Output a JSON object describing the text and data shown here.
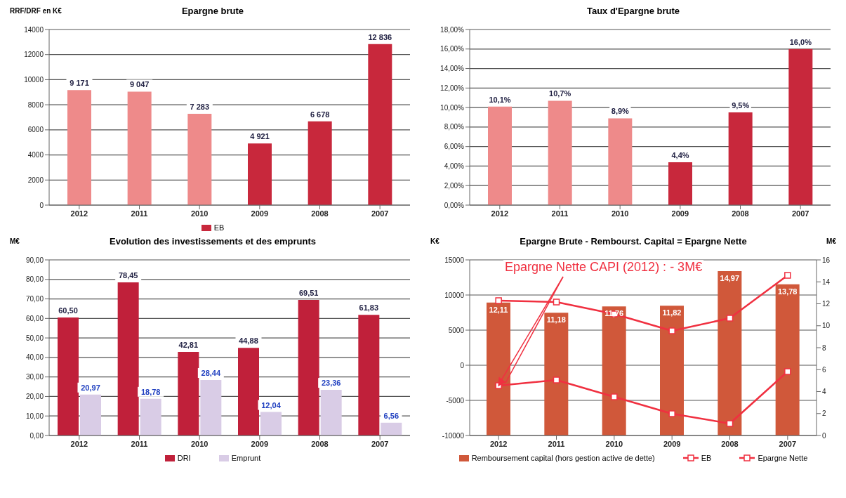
{
  "chart_data": [
    {
      "type": "bar",
      "title": "Epargne brute",
      "ylabel": "RRF/DRF en K€",
      "categories": [
        "2012",
        "2011",
        "2010",
        "2009",
        "2008",
        "2007"
      ],
      "ylim": [
        0,
        14000
      ],
      "yticks": [
        0,
        2000,
        4000,
        6000,
        8000,
        10000,
        12000,
        14000
      ],
      "grid": "y",
      "legend": "bottom",
      "series": [
        {
          "name": "EB",
          "color": "#c8283c",
          "colors": [
            "#ee8a8a",
            "#ee8a8a",
            "#ee8a8a",
            "#c8283c",
            "#c8283c",
            "#c8283c"
          ],
          "values": [
            9171,
            9047,
            7283,
            4921,
            6678,
            12836
          ],
          "value_labels": [
            "9 171",
            "9 047",
            "7 283",
            "4 921",
            "6 678",
            "12 836"
          ]
        }
      ]
    },
    {
      "type": "bar",
      "title": "Taux d'Epargne brute",
      "categories": [
        "2012",
        "2011",
        "2010",
        "2009",
        "2008",
        "2007"
      ],
      "ylim": [
        0,
        18
      ],
      "yticks": [
        {
          "value": 0,
          "label": "0,00%"
        },
        {
          "value": 2,
          "label": "2,00%"
        },
        {
          "value": 4,
          "label": "4,00%"
        },
        {
          "value": 6,
          "label": "6,00%"
        },
        {
          "value": 8,
          "label": "8,00%"
        },
        {
          "value": 10,
          "label": "10,00%"
        },
        {
          "value": 12,
          "label": "12,00%"
        },
        {
          "value": 14,
          "label": "14,00%"
        },
        {
          "value": 16,
          "label": "16,00%"
        },
        {
          "value": 18,
          "label": "18,00%"
        }
      ],
      "grid": "y",
      "series": [
        {
          "color": "#c8283c",
          "colors": [
            "#ee8a8a",
            "#ee8a8a",
            "#ee8a8a",
            "#c8283c",
            "#c8283c",
            "#c8283c"
          ],
          "values": [
            10.1,
            10.7,
            8.9,
            4.4,
            9.5,
            16.0
          ],
          "value_labels": [
            "10,1%",
            "10,7%",
            "8,9%",
            "4,4%",
            "9,5%",
            "16,0%"
          ]
        }
      ]
    },
    {
      "type": "bar",
      "title": "Evolution des investissements et des emprunts",
      "ylabel": "M€",
      "categories": [
        "2012",
        "2011",
        "2010",
        "2009",
        "2008",
        "2007"
      ],
      "ylim": [
        0,
        90
      ],
      "yticks": [
        {
          "value": 0,
          "label": "0,00"
        },
        {
          "value": 10,
          "label": "10,00"
        },
        {
          "value": 20,
          "label": "20,00"
        },
        {
          "value": 30,
          "label": "30,00"
        },
        {
          "value": 40,
          "label": "40,00"
        },
        {
          "value": 50,
          "label": "50,00"
        },
        {
          "value": 60,
          "label": "60,00"
        },
        {
          "value": 70,
          "label": "70,00"
        },
        {
          "value": 80,
          "label": "80,00"
        },
        {
          "value": 90,
          "label": "90,00"
        }
      ],
      "grid": "y",
      "legend": "bottom",
      "series": [
        {
          "name": "DRI",
          "color": "#c0203a",
          "values": [
            60.5,
            78.45,
            42.81,
            44.88,
            69.51,
            61.83
          ],
          "value_labels": [
            "60,50",
            "78,45",
            "42,81",
            "44,88",
            "69,51",
            "61,83"
          ]
        },
        {
          "name": "Emprunt",
          "color": "#d9cce6",
          "values": [
            20.97,
            18.78,
            28.44,
            12.04,
            23.36,
            6.56
          ],
          "value_labels": [
            "20,97",
            "18,78",
            "28,44",
            "12,04",
            "23,36",
            "6,56"
          ]
        }
      ]
    },
    {
      "type": "bar",
      "title": "Epargne Brute - Rembourst. Capital = Epargne Nette",
      "ylabel": "K€",
      "y2label": "M€",
      "categories": [
        "2012",
        "2011",
        "2010",
        "2009",
        "2008",
        "2007"
      ],
      "ylim": [
        -10000,
        15000
      ],
      "yticks": [
        -10000,
        -5000,
        0,
        5000,
        10000,
        15000
      ],
      "y2lim": [
        0,
        16
      ],
      "y2ticks": [
        0,
        2,
        4,
        6,
        8,
        10,
        12,
        14,
        16
      ],
      "grid": "y",
      "legend": "bottom",
      "annotations": [
        {
          "text": "Epargne Nette CAPI (2012) : - 3M€",
          "x": "2012",
          "y": -2900
        }
      ],
      "series": [
        {
          "name": "Remboursement capital (hors gestion active de dette)",
          "axis": "y2",
          "color": "#d0583a",
          "values": [
            12.11,
            11.18,
            11.76,
            11.82,
            14.97,
            13.78
          ],
          "value_labels": [
            "12,11",
            "11,18",
            "11,76",
            "11,82",
            "14,97",
            "13,78"
          ]
        },
        {
          "name": "EB",
          "type": "line",
          "color": "#f03040",
          "marker": "square",
          "values": [
            9200,
            9000,
            7300,
            4900,
            6700,
            12800
          ]
        },
        {
          "name": "Epargne Nette",
          "type": "line",
          "color": "#f03040",
          "marker": "square",
          "values": [
            -2900,
            -2100,
            -4500,
            -6900,
            -8300,
            -900
          ]
        }
      ]
    }
  ]
}
